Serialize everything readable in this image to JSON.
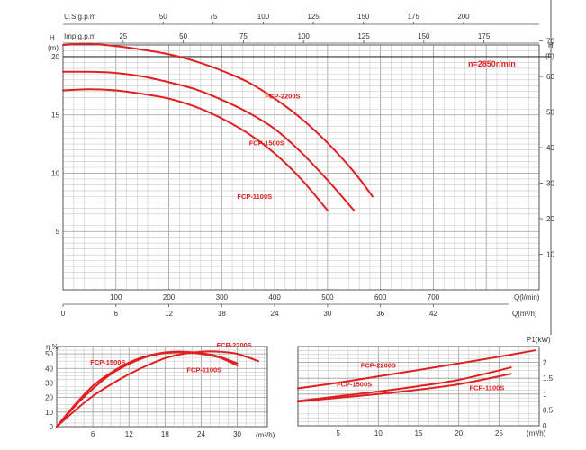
{
  "chart_data": [
    {
      "type": "line",
      "title": "",
      "annotation": "n=2850r/min",
      "x_label": "Q(l/min)",
      "x_label_m3": "Q(m³/h)",
      "y_label_left": "H",
      "y_unit_left": "(m)",
      "y_label_right": "H",
      "y_unit_right": "(ft)",
      "usgpm_label": "U.S.g.p.m",
      "impgpm_label": "Imp.g.p.m",
      "xlim": [
        0,
        900
      ],
      "ylim": [
        0,
        21
      ],
      "grid": true,
      "x_ticks_lmin": [
        "100",
        "200",
        "300",
        "400",
        "500",
        "600",
        "700"
      ],
      "x_ticks_m3": [
        "0",
        "6",
        "12",
        "18",
        "24",
        "30",
        "36",
        "42"
      ],
      "usgpm_ticks": [
        "50",
        "75",
        "100",
        "125",
        "150",
        "175",
        "200"
      ],
      "impgpm_ticks": [
        "25",
        "50",
        "75",
        "100",
        "125",
        "150",
        "175"
      ],
      "y_ticks_m": [
        "5",
        "10",
        "15",
        "20"
      ],
      "y_ticks_ft": [
        "10",
        "20",
        "30",
        "40",
        "50",
        "60",
        "70"
      ],
      "accent_color": "#e02020",
      "series": [
        {
          "name": "FCP-2200S",
          "x": [
            0,
            50,
            100,
            150,
            200,
            250,
            300,
            350,
            400,
            450,
            500,
            550,
            585
          ],
          "y": [
            21.0,
            21.1,
            20.9,
            20.6,
            20.2,
            19.6,
            18.8,
            17.8,
            16.4,
            14.7,
            12.6,
            10.1,
            8.0
          ]
        },
        {
          "name": "FCP-1500S",
          "x": [
            0,
            50,
            100,
            150,
            200,
            250,
            300,
            350,
            400,
            450,
            500,
            550
          ],
          "y": [
            18.7,
            18.7,
            18.6,
            18.3,
            17.8,
            17.2,
            16.3,
            15.2,
            13.8,
            11.8,
            9.4,
            6.8
          ]
        },
        {
          "name": "FCP-1100S",
          "x": [
            0,
            50,
            100,
            150,
            200,
            250,
            300,
            350,
            400,
            450,
            500
          ],
          "y": [
            17.1,
            17.2,
            17.1,
            16.8,
            16.4,
            15.7,
            14.7,
            13.4,
            11.7,
            9.5,
            6.8
          ]
        }
      ]
    },
    {
      "type": "line",
      "title": "",
      "y_label": "η %",
      "x_label": "(m³/h)",
      "xlim": [
        0,
        35
      ],
      "ylim": [
        0,
        55
      ],
      "grid": true,
      "x_ticks": [
        "6",
        "12",
        "18",
        "24",
        "30"
      ],
      "y_ticks": [
        "0",
        "10",
        "20",
        "30",
        "40",
        "50"
      ],
      "series": [
        {
          "name": "FCP-2200S",
          "x": [
            0,
            3,
            6,
            9,
            12,
            15,
            18,
            21,
            24,
            27,
            30,
            33.5
          ],
          "y": [
            0,
            11,
            21,
            29,
            36,
            42,
            47,
            50,
            51.5,
            51.5,
            50,
            45
          ]
        },
        {
          "name": "FCP-1500S",
          "x": [
            0,
            3,
            6,
            9,
            12,
            15,
            18,
            21,
            24,
            27,
            30
          ],
          "y": [
            0,
            15,
            28,
            37,
            44,
            48.5,
            51,
            51.5,
            50.5,
            48,
            43.5
          ]
        },
        {
          "name": "FCP-1100S",
          "x": [
            0,
            3,
            6,
            9,
            12,
            15,
            18,
            21,
            24,
            27,
            30
          ],
          "y": [
            0,
            14,
            26,
            36,
            43,
            48,
            50.5,
            51,
            50,
            47.5,
            42
          ]
        }
      ]
    },
    {
      "type": "line",
      "title": "",
      "y_label": "P1(kW)",
      "x_label": "(m³/h)",
      "xlim": [
        0,
        30
      ],
      "ylim": [
        0,
        2.5
      ],
      "grid": true,
      "x_ticks": [
        "5",
        "10",
        "15",
        "20",
        "25"
      ],
      "y_ticks": [
        "0",
        "0.5",
        "1",
        "1.5",
        "2"
      ],
      "series": [
        {
          "name": "FCP-2200S",
          "x": [
            0,
            5,
            10,
            15,
            20,
            25,
            29.5
          ],
          "y": [
            1.18,
            1.36,
            1.56,
            1.76,
            1.97,
            2.18,
            2.38
          ]
        },
        {
          "name": "FCP-1500S",
          "x": [
            0,
            5,
            10,
            15,
            20,
            26.5
          ],
          "y": [
            0.78,
            0.93,
            1.08,
            1.25,
            1.45,
            1.84
          ]
        },
        {
          "name": "FCP-1100S",
          "x": [
            0,
            5,
            10,
            15,
            20,
            26.5
          ],
          "y": [
            0.76,
            0.88,
            1.0,
            1.14,
            1.31,
            1.64
          ]
        }
      ]
    }
  ]
}
